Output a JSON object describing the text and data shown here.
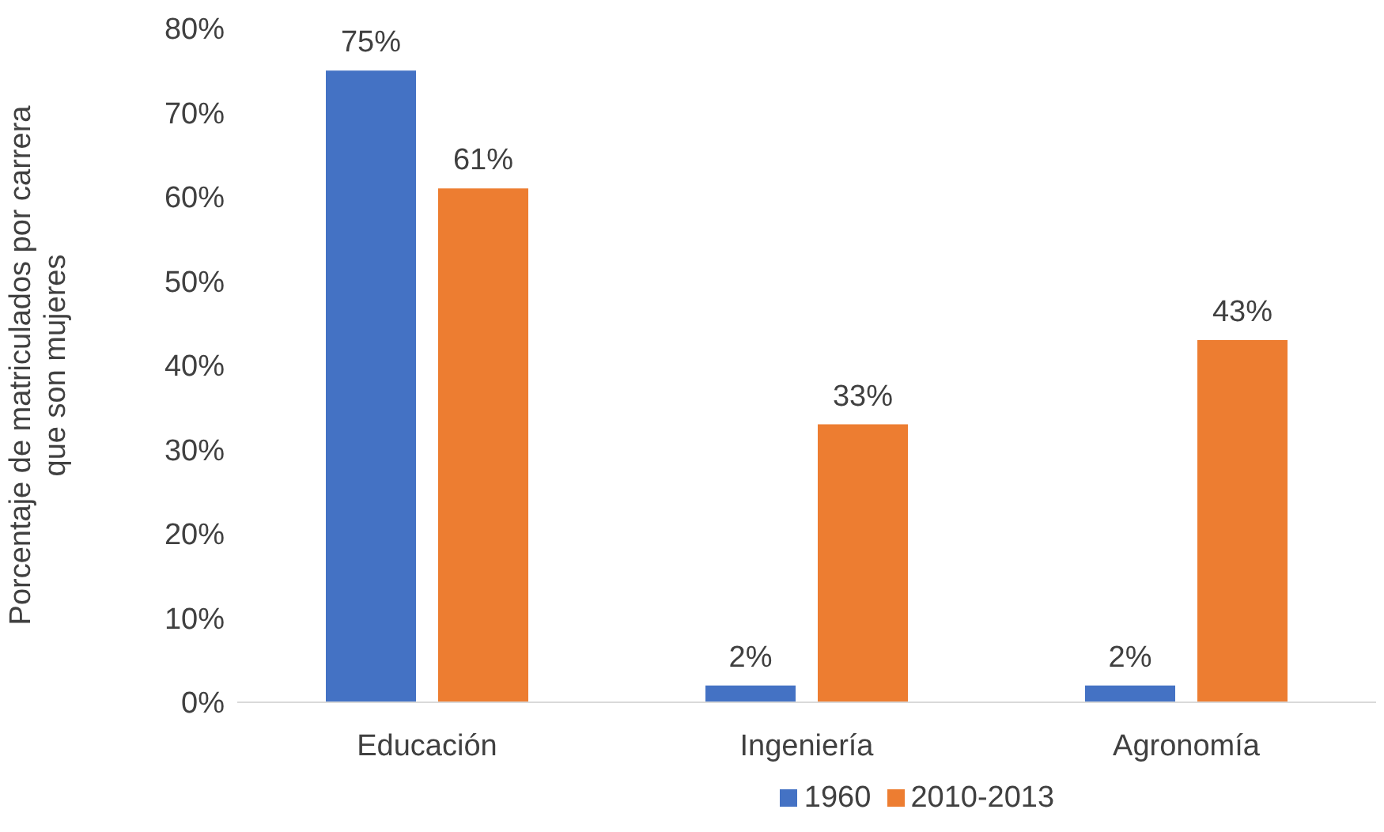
{
  "chart_data": {
    "type": "bar",
    "categories": [
      "Educación",
      "Ingeniería",
      "Agronomía"
    ],
    "ylabel": "Porcentaje de matriculados por carrera\nque son mujeres",
    "series": [
      {
        "name": "1960",
        "color": "#4472c4",
        "values": [
          75,
          2,
          2
        ],
        "value_labels": [
          "75%",
          "2%",
          "2%"
        ]
      },
      {
        "name": "2010-2013",
        "color": "#ed7d31",
        "values": [
          61,
          33,
          43
        ],
        "value_labels": [
          "61%",
          "33%",
          "43%"
        ]
      }
    ],
    "ylim": [
      0,
      80
    ],
    "yticks": [
      {
        "value": 0,
        "label": "0%"
      },
      {
        "value": 10,
        "label": "10%"
      },
      {
        "value": 20,
        "label": "20%"
      },
      {
        "value": 30,
        "label": "30%"
      },
      {
        "value": 40,
        "label": "40%"
      },
      {
        "value": 50,
        "label": "50%"
      },
      {
        "value": 60,
        "label": "60%"
      },
      {
        "value": 70,
        "label": "70%"
      },
      {
        "value": 80,
        "label": "80%"
      }
    ],
    "grid": false,
    "legend": "bottom"
  }
}
